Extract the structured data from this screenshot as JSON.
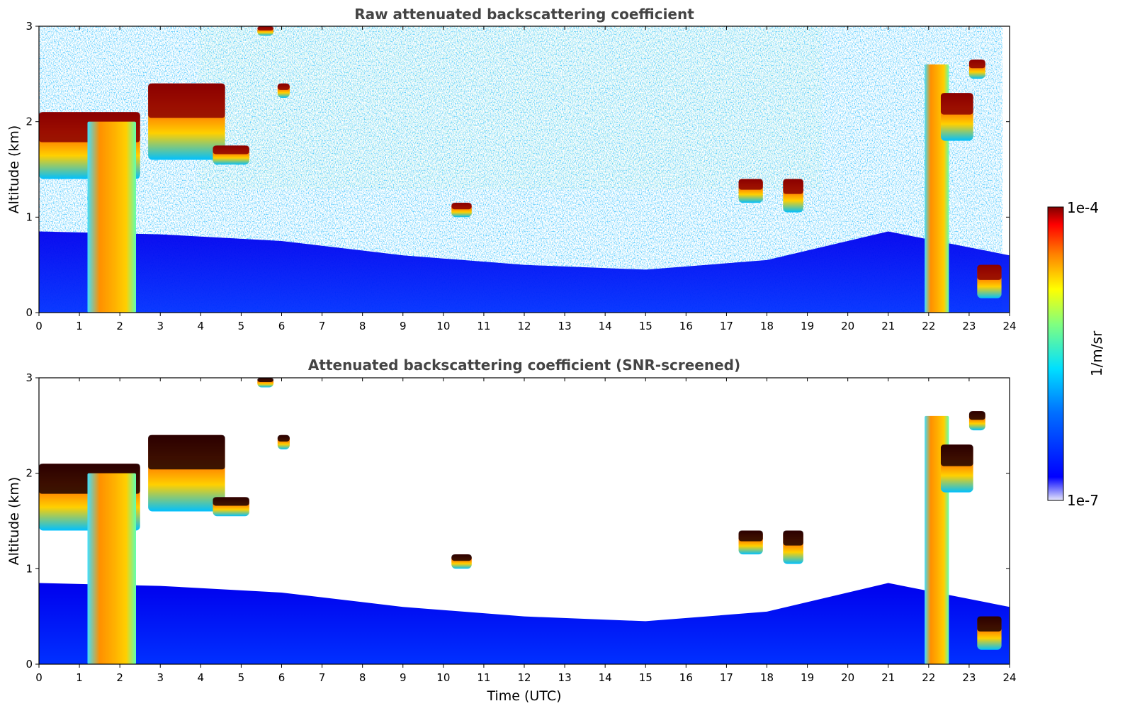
{
  "chart_data": [
    {
      "type": "heatmap",
      "title": "Raw attenuated backscattering coefficient",
      "xlabel": "",
      "ylabel": "Altitude (km)",
      "xlim": [
        0,
        24
      ],
      "ylim": [
        0,
        3
      ],
      "x_ticks": [
        "0",
        "1",
        "2",
        "3",
        "4",
        "5",
        "6",
        "7",
        "8",
        "9",
        "10",
        "11",
        "12",
        "13",
        "14",
        "15",
        "16",
        "17",
        "18",
        "19",
        "20",
        "21",
        "22",
        "23",
        "24"
      ],
      "y_ticks": [
        "0",
        "1",
        "2",
        "3"
      ],
      "screened": false,
      "cloud_layers": [
        {
          "t_start": 0.0,
          "t_end": 2.5,
          "altitude_km": [
            1.4,
            2.1
          ]
        },
        {
          "t_start": 1.2,
          "t_end": 2.4,
          "altitude_km": [
            0.0,
            2.0
          ]
        },
        {
          "t_start": 2.7,
          "t_end": 4.6,
          "altitude_km": [
            1.6,
            2.4
          ]
        },
        {
          "t_start": 4.3,
          "t_end": 5.2,
          "altitude_km": [
            1.55,
            1.75
          ]
        },
        {
          "t_start": 5.4,
          "t_end": 5.8,
          "altitude_km": [
            2.9,
            3.0
          ]
        },
        {
          "t_start": 5.9,
          "t_end": 6.2,
          "altitude_km": [
            2.25,
            2.4
          ]
        },
        {
          "t_start": 10.2,
          "t_end": 10.7,
          "altitude_km": [
            1.0,
            1.15
          ]
        },
        {
          "t_start": 17.3,
          "t_end": 17.9,
          "altitude_km": [
            1.15,
            1.4
          ]
        },
        {
          "t_start": 18.4,
          "t_end": 18.9,
          "altitude_km": [
            1.05,
            1.4
          ]
        },
        {
          "t_start": 21.9,
          "t_end": 22.5,
          "altitude_km": [
            0.0,
            2.6
          ]
        },
        {
          "t_start": 22.3,
          "t_end": 23.1,
          "altitude_km": [
            1.8,
            2.3
          ]
        },
        {
          "t_start": 23.0,
          "t_end": 23.4,
          "altitude_km": [
            2.45,
            2.65
          ]
        },
        {
          "t_start": 23.2,
          "t_end": 23.8,
          "altitude_km": [
            0.15,
            0.5
          ]
        }
      ],
      "boundary_layer_top_km": {
        "t": [
          0,
          3,
          6,
          9,
          12,
          15,
          18,
          21,
          24
        ],
        "altitude_km": [
          0.85,
          0.82,
          0.75,
          0.6,
          0.5,
          0.45,
          0.55,
          0.85,
          0.6
        ]
      }
    },
    {
      "type": "heatmap",
      "title": "Attenuated backscattering coefficient (SNR-screened)",
      "xlabel": "Time (UTC)",
      "ylabel": "Altitude (km)",
      "xlim": [
        0,
        24
      ],
      "ylim": [
        0,
        3
      ],
      "x_ticks": [
        "0",
        "1",
        "2",
        "3",
        "4",
        "5",
        "6",
        "7",
        "8",
        "9",
        "10",
        "11",
        "12",
        "13",
        "14",
        "15",
        "16",
        "17",
        "18",
        "19",
        "20",
        "21",
        "22",
        "23",
        "24"
      ],
      "y_ticks": [
        "0",
        "1",
        "2",
        "3"
      ],
      "screened": true,
      "cloud_layers": [
        {
          "t_start": 0.0,
          "t_end": 2.5,
          "altitude_km": [
            1.4,
            2.1
          ]
        },
        {
          "t_start": 1.2,
          "t_end": 2.4,
          "altitude_km": [
            0.0,
            2.0
          ]
        },
        {
          "t_start": 2.7,
          "t_end": 4.6,
          "altitude_km": [
            1.6,
            2.4
          ]
        },
        {
          "t_start": 4.3,
          "t_end": 5.2,
          "altitude_km": [
            1.55,
            1.75
          ]
        },
        {
          "t_start": 5.4,
          "t_end": 5.8,
          "altitude_km": [
            2.9,
            3.0
          ]
        },
        {
          "t_start": 5.9,
          "t_end": 6.2,
          "altitude_km": [
            2.25,
            2.4
          ]
        },
        {
          "t_start": 10.2,
          "t_end": 10.7,
          "altitude_km": [
            1.0,
            1.15
          ]
        },
        {
          "t_start": 17.3,
          "t_end": 17.9,
          "altitude_km": [
            1.15,
            1.4
          ]
        },
        {
          "t_start": 18.4,
          "t_end": 18.9,
          "altitude_km": [
            1.05,
            1.4
          ]
        },
        {
          "t_start": 21.9,
          "t_end": 22.5,
          "altitude_km": [
            0.0,
            2.6
          ]
        },
        {
          "t_start": 22.3,
          "t_end": 23.1,
          "altitude_km": [
            1.8,
            2.3
          ]
        },
        {
          "t_start": 23.0,
          "t_end": 23.4,
          "altitude_km": [
            2.45,
            2.65
          ]
        },
        {
          "t_start": 23.2,
          "t_end": 23.8,
          "altitude_km": [
            0.15,
            0.5
          ]
        }
      ],
      "boundary_layer_top_km": {
        "t": [
          0,
          3,
          6,
          9,
          12,
          15,
          18,
          21,
          24
        ],
        "altitude_km": [
          0.85,
          0.82,
          0.75,
          0.6,
          0.5,
          0.45,
          0.55,
          0.85,
          0.6
        ]
      }
    }
  ],
  "colorbar": {
    "label": "1/m/sr",
    "max_label": "1e-4",
    "min_label": "1e-7",
    "colormap": "jet",
    "colors": [
      "#e6e6fa",
      "#0000ff",
      "#00a0ff",
      "#00ffff",
      "#ffff00",
      "#ff8000",
      "#ff0000",
      "#800000"
    ]
  }
}
